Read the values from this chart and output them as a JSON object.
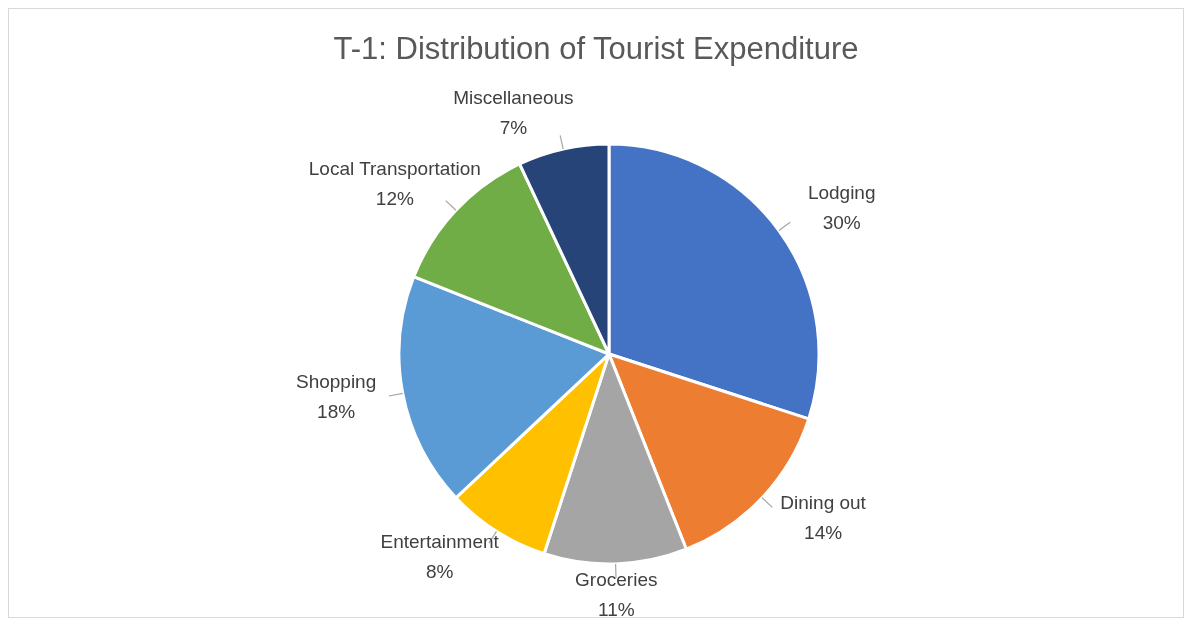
{
  "chart_data": {
    "type": "pie",
    "title": "T-1: Distribution of Tourist Expenditure",
    "categories": [
      "Lodging",
      "Dining out",
      "Groceries",
      "Entertainment",
      "Shopping",
      "Local Transportation",
      "Miscellaneous"
    ],
    "values": [
      30,
      14,
      11,
      8,
      18,
      12,
      7
    ],
    "value_labels": [
      "30%",
      "14%",
      "11%",
      "8%",
      "18%",
      "12%",
      "7%"
    ],
    "colors": [
      "#4472c4",
      "#ed7d31",
      "#a5a5a5",
      "#ffc000",
      "#5b9bd5",
      "#70ad47",
      "#264478"
    ]
  }
}
